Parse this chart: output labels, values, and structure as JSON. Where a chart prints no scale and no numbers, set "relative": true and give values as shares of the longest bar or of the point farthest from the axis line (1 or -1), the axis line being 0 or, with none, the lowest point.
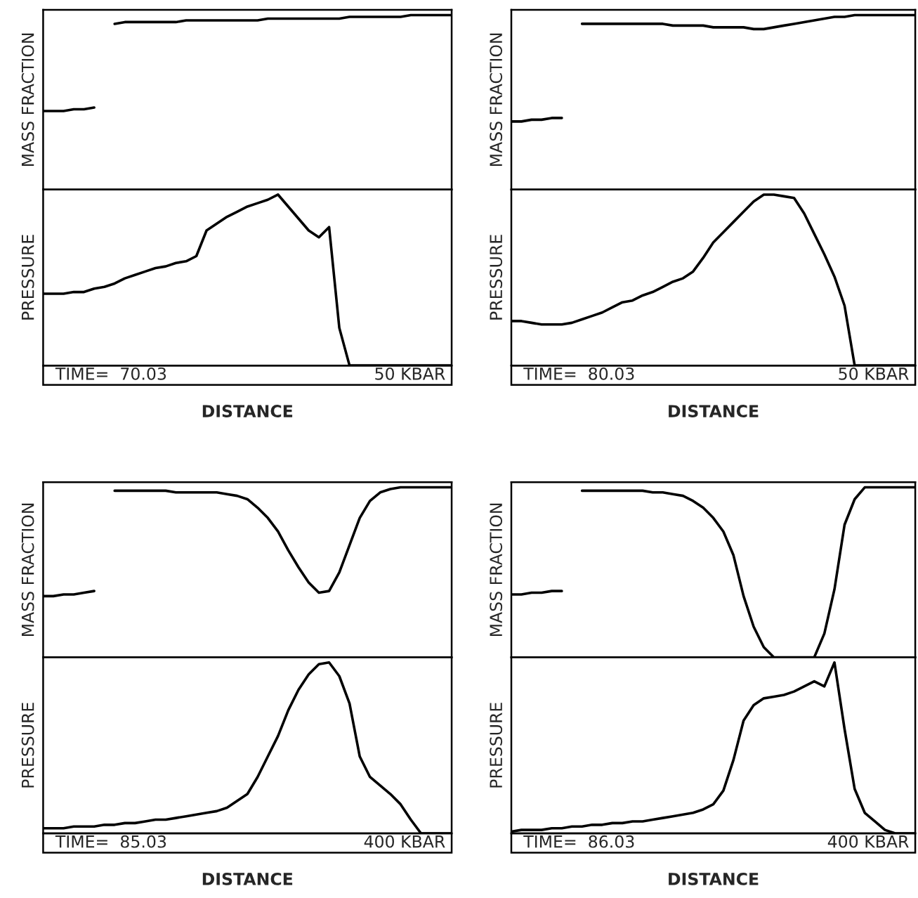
{
  "chart_data": [
    {
      "type": "line",
      "relative": true,
      "ylabel": "MASS FRACTION",
      "grid": false,
      "tick_labels": false,
      "categories": [
        null,
        null,
        null,
        null,
        null,
        null,
        null,
        null,
        null,
        null,
        null,
        null,
        null,
        null,
        null,
        null,
        null,
        null,
        null,
        null,
        null,
        null,
        null,
        null,
        null,
        null,
        null,
        null,
        null,
        null,
        null,
        null,
        null,
        null,
        null,
        null,
        null,
        null,
        null,
        null,
        null
      ],
      "series": [
        {
          "color": "#000000",
          "values": [
            0.45,
            0.45,
            0.45,
            0.46,
            0.46,
            0.47,
            null,
            0.95,
            0.96,
            0.96,
            0.96,
            0.96,
            0.96,
            0.96,
            0.97,
            0.97,
            0.97,
            0.97,
            0.97,
            0.97,
            0.97,
            0.97,
            0.98,
            0.98,
            0.98,
            0.98,
            0.98,
            0.98,
            0.98,
            0.98,
            0.99,
            0.99,
            0.99,
            0.99,
            0.99,
            0.99,
            1.0,
            1.0,
            1.0,
            1.0,
            1.0
          ]
        }
      ]
    },
    {
      "type": "line",
      "relative": true,
      "ylabel": "PRESSURE",
      "xlabel": "DISTANCE",
      "annotations": [
        "TIME=  70.03",
        "50 KBAR"
      ],
      "grid": false,
      "tick_labels": false,
      "categories": [
        null,
        null,
        null,
        null,
        null,
        null,
        null,
        null,
        null,
        null,
        null,
        null,
        null,
        null,
        null,
        null,
        null,
        null,
        null,
        null,
        null,
        null,
        null,
        null,
        null,
        null,
        null,
        null,
        null,
        null,
        null,
        null,
        null,
        null,
        null,
        null,
        null,
        null,
        null,
        null,
        null
      ],
      "series": [
        {
          "color": "#000000",
          "values": [
            0.42,
            0.42,
            0.42,
            0.43,
            0.43,
            0.45,
            0.46,
            0.48,
            0.51,
            0.53,
            0.55,
            0.57,
            0.58,
            0.6,
            0.61,
            0.64,
            0.79,
            0.83,
            0.87,
            0.9,
            0.93,
            0.95,
            0.97,
            1.0,
            0.93,
            0.86,
            0.79,
            0.75,
            0.81,
            0.22,
            0,
            0,
            0,
            0,
            0,
            0,
            0,
            0,
            0,
            0,
            0
          ]
        }
      ]
    },
    {
      "type": "line",
      "relative": true,
      "ylabel": "MASS FRACTION",
      "grid": false,
      "tick_labels": false,
      "categories": [
        null,
        null,
        null,
        null,
        null,
        null,
        null,
        null,
        null,
        null,
        null,
        null,
        null,
        null,
        null,
        null,
        null,
        null,
        null,
        null,
        null,
        null,
        null,
        null,
        null,
        null,
        null,
        null,
        null,
        null,
        null,
        null,
        null,
        null,
        null,
        null,
        null,
        null,
        null,
        null,
        null
      ],
      "series": [
        {
          "color": "#000000",
          "values": [
            0.39,
            0.39,
            0.4,
            0.4,
            0.41,
            0.41,
            null,
            0.95,
            0.95,
            0.95,
            0.95,
            0.95,
            0.95,
            0.95,
            0.95,
            0.95,
            0.94,
            0.94,
            0.94,
            0.94,
            0.93,
            0.93,
            0.93,
            0.93,
            0.92,
            0.92,
            0.93,
            0.94,
            0.95,
            0.96,
            0.97,
            0.98,
            0.99,
            0.99,
            1.0,
            1.0,
            1.0,
            1.0,
            1.0,
            1.0,
            1.0
          ]
        }
      ]
    },
    {
      "type": "line",
      "relative": true,
      "ylabel": "PRESSURE",
      "xlabel": "DISTANCE",
      "annotations": [
        "TIME=  80.03",
        "50 KBAR"
      ],
      "grid": false,
      "tick_labels": false,
      "categories": [
        null,
        null,
        null,
        null,
        null,
        null,
        null,
        null,
        null,
        null,
        null,
        null,
        null,
        null,
        null,
        null,
        null,
        null,
        null,
        null,
        null,
        null,
        null,
        null,
        null,
        null,
        null,
        null,
        null,
        null,
        null,
        null,
        null,
        null,
        null,
        null,
        null,
        null,
        null,
        null,
        null
      ],
      "series": [
        {
          "color": "#000000",
          "values": [
            0.26,
            0.26,
            0.25,
            0.24,
            0.24,
            0.24,
            0.25,
            0.27,
            0.29,
            0.31,
            0.34,
            0.37,
            0.38,
            0.41,
            0.43,
            0.46,
            0.49,
            0.51,
            0.55,
            0.63,
            0.72,
            0.78,
            0.84,
            0.9,
            0.96,
            1.0,
            1.0,
            0.99,
            0.98,
            0.89,
            0.77,
            0.65,
            0.52,
            0.35,
            0,
            0,
            0,
            0,
            0,
            0,
            0
          ]
        }
      ]
    },
    {
      "type": "line",
      "relative": true,
      "ylabel": "MASS FRACTION",
      "grid": false,
      "tick_labels": false,
      "categories": [
        null,
        null,
        null,
        null,
        null,
        null,
        null,
        null,
        null,
        null,
        null,
        null,
        null,
        null,
        null,
        null,
        null,
        null,
        null,
        null,
        null,
        null,
        null,
        null,
        null,
        null,
        null,
        null,
        null,
        null,
        null,
        null,
        null,
        null,
        null,
        null,
        null,
        null,
        null,
        null,
        null
      ],
      "series": [
        {
          "color": "#000000",
          "values": [
            0.36,
            0.36,
            0.37,
            0.37,
            0.38,
            0.39,
            null,
            0.98,
            0.98,
            0.98,
            0.98,
            0.98,
            0.98,
            0.97,
            0.97,
            0.97,
            0.97,
            0.97,
            0.96,
            0.95,
            0.93,
            0.88,
            0.82,
            0.74,
            0.63,
            0.53,
            0.44,
            0.38,
            0.39,
            0.5,
            0.66,
            0.82,
            0.92,
            0.97,
            0.99,
            1.0,
            1.0,
            1.0,
            1.0,
            1.0,
            1.0
          ]
        }
      ]
    },
    {
      "type": "line",
      "relative": true,
      "ylabel": "PRESSURE",
      "xlabel": "DISTANCE",
      "annotations": [
        "TIME=  85.03",
        "400 KBAR"
      ],
      "grid": false,
      "tick_labels": false,
      "categories": [
        null,
        null,
        null,
        null,
        null,
        null,
        null,
        null,
        null,
        null,
        null,
        null,
        null,
        null,
        null,
        null,
        null,
        null,
        null,
        null,
        null,
        null,
        null,
        null,
        null,
        null,
        null,
        null,
        null,
        null,
        null,
        null,
        null,
        null,
        null,
        null,
        null,
        null,
        null,
        null,
        null
      ],
      "series": [
        {
          "color": "#000000",
          "values": [
            0.03,
            0.03,
            0.03,
            0.04,
            0.04,
            0.04,
            0.05,
            0.05,
            0.06,
            0.06,
            0.07,
            0.08,
            0.08,
            0.09,
            0.1,
            0.11,
            0.12,
            0.13,
            0.15,
            0.19,
            0.23,
            0.33,
            0.45,
            0.57,
            0.72,
            0.84,
            0.93,
            0.99,
            1.0,
            0.92,
            0.76,
            0.45,
            0.33,
            0.28,
            0.23,
            0.17,
            0.08,
            0,
            0,
            0,
            0
          ]
        }
      ]
    },
    {
      "type": "line",
      "relative": true,
      "ylabel": "MASS FRACTION",
      "grid": false,
      "tick_labels": false,
      "categories": [
        null,
        null,
        null,
        null,
        null,
        null,
        null,
        null,
        null,
        null,
        null,
        null,
        null,
        null,
        null,
        null,
        null,
        null,
        null,
        null,
        null,
        null,
        null,
        null,
        null,
        null,
        null,
        null,
        null,
        null,
        null,
        null,
        null,
        null,
        null,
        null,
        null,
        null,
        null,
        null,
        null
      ],
      "series": [
        {
          "color": "#000000",
          "values": [
            0.37,
            0.37,
            0.38,
            0.38,
            0.39,
            0.39,
            null,
            0.98,
            0.98,
            0.98,
            0.98,
            0.98,
            0.98,
            0.98,
            0.97,
            0.97,
            0.96,
            0.95,
            0.92,
            0.88,
            0.82,
            0.74,
            0.6,
            0.36,
            0.18,
            0.06,
            0,
            0,
            0,
            0,
            0,
            0.14,
            0.4,
            0.78,
            0.93,
            1.0,
            1.0,
            1.0,
            1.0,
            1.0,
            1.0
          ]
        }
      ]
    },
    {
      "type": "line",
      "relative": true,
      "ylabel": "PRESSURE",
      "xlabel": "DISTANCE",
      "annotations": [
        "TIME=  86.03",
        "400 KBAR"
      ],
      "grid": false,
      "tick_labels": false,
      "categories": [
        null,
        null,
        null,
        null,
        null,
        null,
        null,
        null,
        null,
        null,
        null,
        null,
        null,
        null,
        null,
        null,
        null,
        null,
        null,
        null,
        null,
        null,
        null,
        null,
        null,
        null,
        null,
        null,
        null,
        null,
        null,
        null,
        null,
        null,
        null,
        null,
        null,
        null,
        null,
        null,
        null
      ],
      "series": [
        {
          "color": "#000000",
          "values": [
            0.01,
            0.02,
            0.02,
            0.02,
            0.03,
            0.03,
            0.04,
            0.04,
            0.05,
            0.05,
            0.06,
            0.06,
            0.07,
            0.07,
            0.08,
            0.09,
            0.1,
            0.11,
            0.12,
            0.14,
            0.17,
            0.25,
            0.43,
            0.66,
            0.75,
            0.79,
            0.8,
            0.81,
            0.83,
            0.86,
            0.89,
            0.86,
            1.0,
            0.61,
            0.26,
            0.12,
            0.07,
            0.02,
            0,
            0,
            0
          ]
        }
      ]
    }
  ]
}
